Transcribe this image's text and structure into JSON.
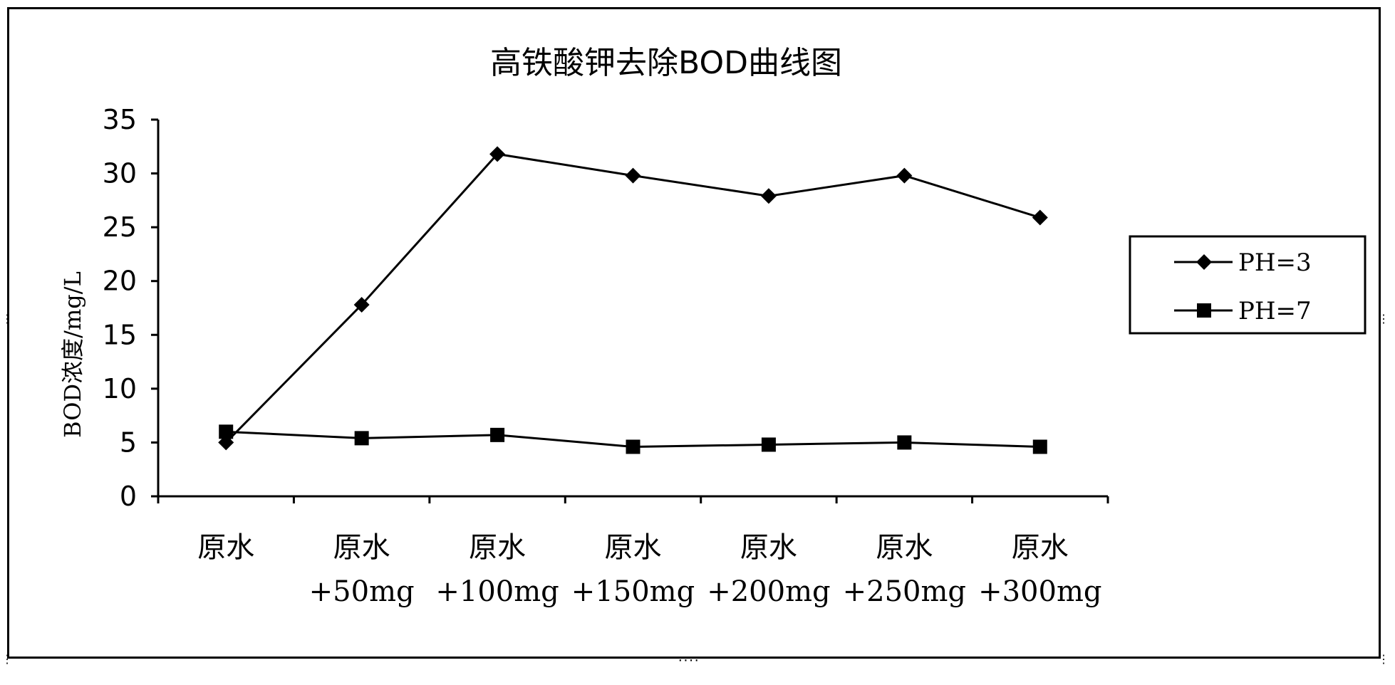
{
  "chart_data": {
    "type": "line",
    "title": "高铁酸钾去除BOD曲线图",
    "ylabel": "BOD浓度/mg/L",
    "xlabel": "",
    "ylim": [
      0,
      35
    ],
    "yticks": [
      "0",
      "5",
      "10",
      "15",
      "20",
      "25",
      "30",
      "35"
    ],
    "categories": [
      [
        "原水"
      ],
      [
        "原水",
        "+50mg"
      ],
      [
        "原水",
        "+100mg"
      ],
      [
        "原水",
        "+150mg"
      ],
      [
        "原水",
        "+200mg"
      ],
      [
        "原水",
        "+250mg"
      ],
      [
        "原水",
        "+300mg"
      ]
    ],
    "series": [
      {
        "name": "PH=3",
        "marker": "diamond",
        "values": [
          5.0,
          17.8,
          31.8,
          29.8,
          27.9,
          29.8,
          25.9
        ]
      },
      {
        "name": "PH=7",
        "marker": "square",
        "values": [
          6.0,
          5.4,
          5.7,
          4.6,
          4.8,
          5.0,
          4.6
        ]
      }
    ],
    "legend_position": "right",
    "grid": false,
    "colors": {
      "line": "#000000",
      "marker": "#000000",
      "background": "#ffffff"
    }
  }
}
